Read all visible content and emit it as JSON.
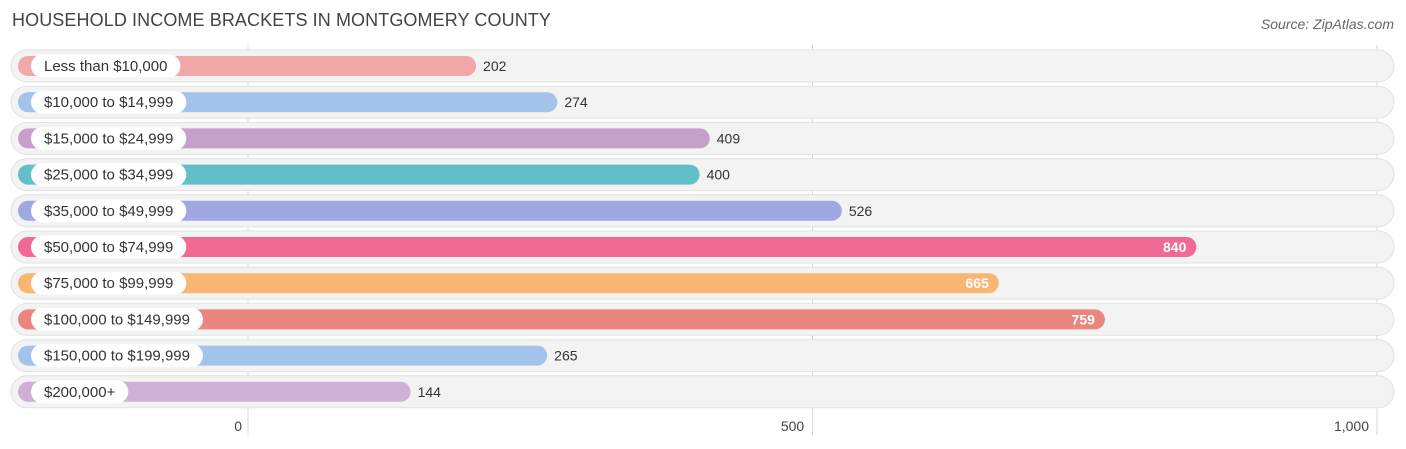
{
  "title": "HOUSEHOLD INCOME BRACKETS IN MONTGOMERY COUNTY",
  "source": "Source: ZipAtlas.com",
  "chart_data": {
    "type": "bar",
    "orientation": "horizontal",
    "title": "HOUSEHOLD INCOME BRACKETS IN MONTGOMERY COUNTY",
    "categories": [
      "Less than $10,000",
      "$10,000 to $14,999",
      "$15,000 to $24,999",
      "$25,000 to $34,999",
      "$35,000 to $49,999",
      "$50,000 to $74,999",
      "$75,000 to $99,999",
      "$100,000 to $149,999",
      "$150,000 to $199,999",
      "$200,000+"
    ],
    "values": [
      202,
      274,
      409,
      400,
      526,
      840,
      665,
      759,
      265,
      144
    ],
    "value_labels": [
      "202",
      "274",
      "409",
      "400",
      "526",
      "840",
      "665",
      "759",
      "265",
      "144"
    ],
    "colors": [
      "#f0a8a8",
      "#a3c3ea",
      "#c6a0cb",
      "#62bfc8",
      "#a0a8e4",
      "#f06a94",
      "#f9b672",
      "#eb8580",
      "#a3c3ea",
      "#cfb0d6"
    ],
    "label_inside": [
      false,
      false,
      false,
      false,
      false,
      true,
      true,
      true,
      false,
      false
    ],
    "xlim": [
      0,
      1000
    ],
    "xticks": [
      0,
      500,
      1000
    ],
    "xtick_labels": [
      "0",
      "500",
      "1,000"
    ],
    "grid": true
  }
}
